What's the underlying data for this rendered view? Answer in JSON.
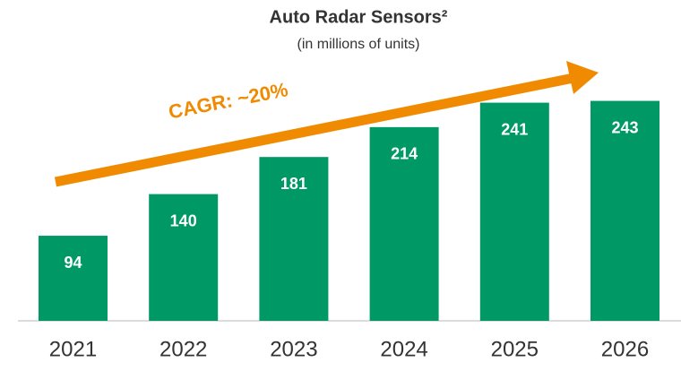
{
  "chart_data": {
    "type": "bar",
    "title": "Auto Radar Sensors²",
    "subtitle": "(in millions of units)",
    "annotation": "CAGR: ~20%",
    "categories": [
      "2021",
      "2022",
      "2023",
      "2024",
      "2025",
      "2026"
    ],
    "values": [
      94,
      140,
      181,
      214,
      241,
      243
    ],
    "color": "#009966"
  }
}
